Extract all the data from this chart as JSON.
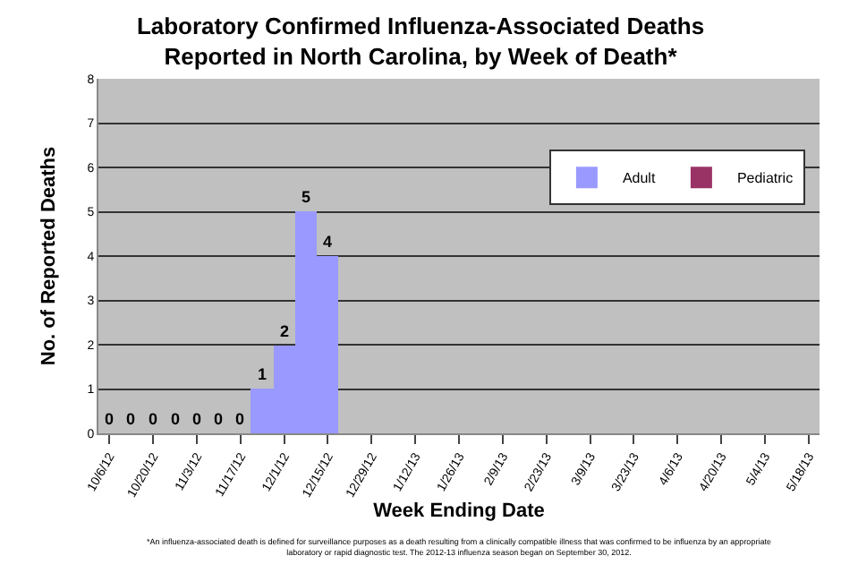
{
  "chart_data": {
    "type": "bar",
    "stacked": true,
    "title": "Laboratory Confirmed Influenza-Associated Deaths\nReported in North Carolina, by Week of Death*",
    "xlabel": "Week Ending Date",
    "ylabel": "No. of Reported Deaths",
    "categories": [
      "10/6/12",
      null,
      "10/20/12",
      null,
      "11/3/12",
      null,
      "11/17/12",
      null,
      "12/1/12",
      null,
      "12/15/12",
      null,
      "12/29/12",
      null,
      "1/12/13",
      null,
      "1/26/13",
      null,
      "2/9/13",
      null,
      "2/23/13",
      null,
      "3/9/13",
      null,
      "3/23/13",
      null,
      "4/6/13",
      null,
      "4/20/13",
      null,
      "5/4/13",
      null,
      "5/18/13"
    ],
    "series": [
      {
        "name": "Adult",
        "color": "#9999ff",
        "values": [
          0,
          0,
          0,
          0,
          0,
          0,
          0,
          1,
          2,
          5,
          4,
          null,
          null,
          null,
          null,
          null,
          null,
          null,
          null,
          null,
          null,
          null,
          null,
          null,
          null,
          null,
          null,
          null,
          null,
          null,
          null,
          null,
          null
        ],
        "value_labels": [
          "0",
          "0",
          "0",
          "0",
          "0",
          "0",
          "0",
          "1",
          "2",
          "5",
          "4",
          null,
          null,
          null,
          null,
          null,
          null,
          null,
          null,
          null,
          null,
          null,
          null,
          null,
          null,
          null,
          null,
          null,
          null,
          null,
          null,
          null,
          null
        ]
      },
      {
        "name": "Pediatric",
        "color": "#993366",
        "values": [
          null,
          null,
          null,
          null,
          null,
          null,
          null,
          null,
          null,
          null,
          null,
          null,
          null,
          null,
          null,
          null,
          null,
          null,
          null,
          null,
          null,
          null,
          null,
          null,
          null,
          null,
          null,
          null,
          null,
          null,
          null,
          null,
          null
        ]
      }
    ],
    "ylim": [
      0,
      8
    ],
    "yticks": [
      0,
      1,
      2,
      3,
      4,
      5,
      6,
      7,
      8
    ],
    "grid": "y",
    "legend": "top right",
    "annotations": [
      "*An influenza-associated death is defined for surveillance purposes as a death resulting from a clinically compatible illness that was confirmed to be influenza by an appropriate\nlaboratory or rapid diagnostic test. The 2012-13 influenza season began on September 30, 2012."
    ]
  }
}
